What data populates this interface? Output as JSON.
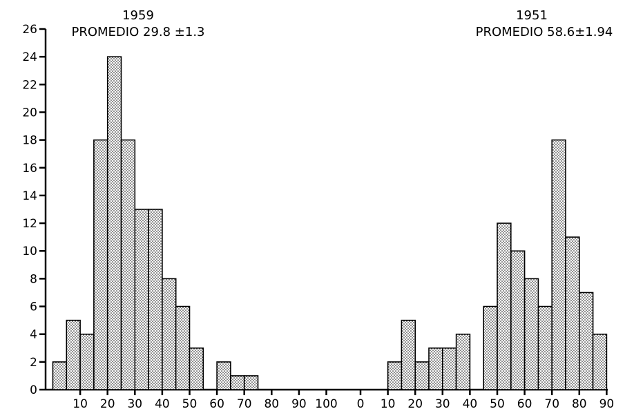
{
  "chart_data": {
    "type": "bar",
    "y_ticks": [
      "0",
      "2",
      "4",
      "6",
      "8",
      "10",
      "12",
      "14",
      "16",
      "18",
      "20",
      "22",
      "24",
      "26"
    ],
    "ylim": [
      0,
      26
    ],
    "grid": false,
    "panels": [
      {
        "title": "1959",
        "subtitle": "PROMEDIO 29.8 ±1.3",
        "x_ticks": [
          "10",
          "20",
          "30",
          "40",
          "50",
          "60",
          "70",
          "80",
          "90",
          "100"
        ],
        "xlim": [
          0,
          100
        ],
        "bin_width": 5,
        "bars": [
          {
            "x": 2.5,
            "value": 2
          },
          {
            "x": 7.5,
            "value": 5
          },
          {
            "x": 12.5,
            "value": 4
          },
          {
            "x": 17.5,
            "value": 18
          },
          {
            "x": 22.5,
            "value": 24
          },
          {
            "x": 27.5,
            "value": 18
          },
          {
            "x": 32.5,
            "value": 13
          },
          {
            "x": 37.5,
            "value": 13
          },
          {
            "x": 42.5,
            "value": 8
          },
          {
            "x": 47.5,
            "value": 6
          },
          {
            "x": 52.5,
            "value": 3
          },
          {
            "x": 62.5,
            "value": 2
          },
          {
            "x": 67.5,
            "value": 1
          },
          {
            "x": 72.5,
            "value": 1
          }
        ]
      },
      {
        "title": "1951",
        "subtitle": "PROMEDIO 58.6±1.94",
        "x_ticks": [
          "0",
          "10",
          "20",
          "30",
          "40",
          "50",
          "60",
          "70",
          "80",
          "90"
        ],
        "xlim": [
          0,
          90
        ],
        "bin_width": 5,
        "bars": [
          {
            "x": 12.5,
            "value": 2
          },
          {
            "x": 17.5,
            "value": 5
          },
          {
            "x": 22.5,
            "value": 2
          },
          {
            "x": 27.5,
            "value": 3
          },
          {
            "x": 32.5,
            "value": 3
          },
          {
            "x": 37.5,
            "value": 4
          },
          {
            "x": 47.5,
            "value": 6
          },
          {
            "x": 52.5,
            "value": 12
          },
          {
            "x": 57.5,
            "value": 10
          },
          {
            "x": 62.5,
            "value": 8
          },
          {
            "x": 67.5,
            "value": 6
          },
          {
            "x": 72.5,
            "value": 18
          },
          {
            "x": 77.5,
            "value": 11
          },
          {
            "x": 82.5,
            "value": 7
          },
          {
            "x": 87.5,
            "value": 4
          }
        ]
      }
    ]
  }
}
